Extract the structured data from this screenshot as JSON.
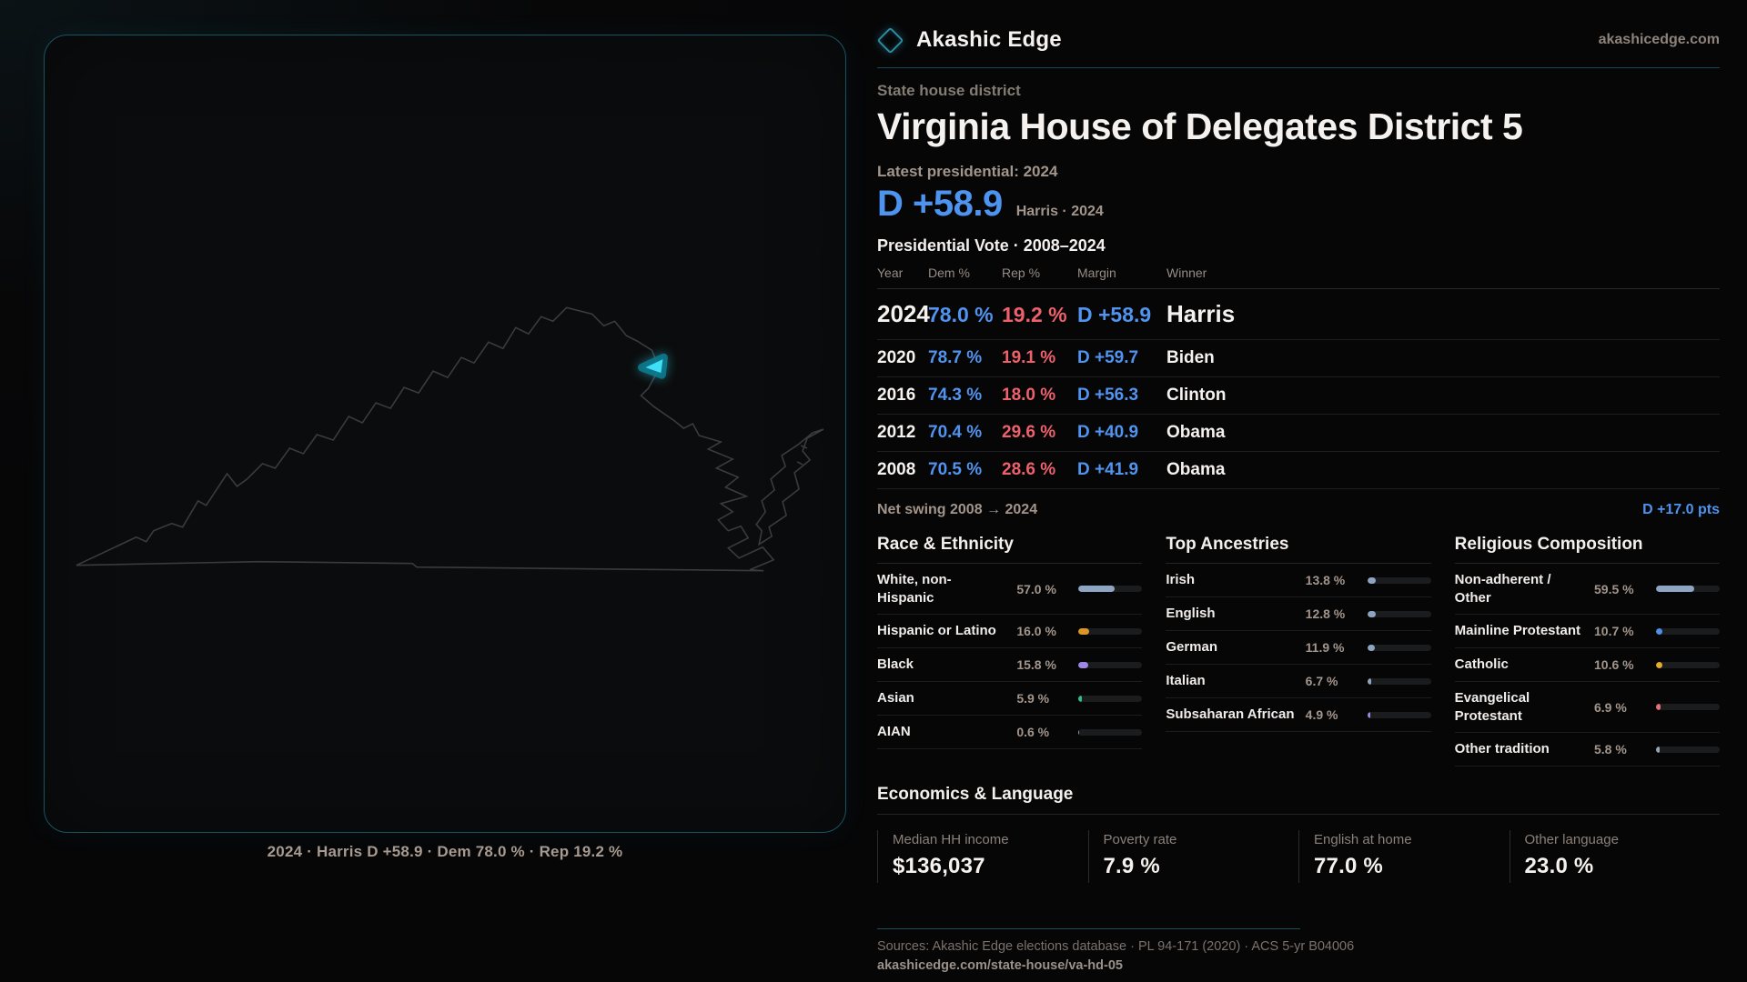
{
  "brand": {
    "name": "Akashic Edge",
    "domain": "akashicedge.com"
  },
  "page": {
    "kicker": "State house district",
    "title": "Virginia House of Delegates District 5",
    "latest_label": "Latest presidential: 2024",
    "headline": {
      "margin": "D +58.9",
      "caption": "Harris · 2024"
    },
    "table_title": "Presidential Vote · 2008–2024",
    "net_swing": {
      "label": "Net swing 2008 → 2024",
      "value": "D +17.0 pts"
    }
  },
  "map": {
    "caption": "2024 · Harris D +58.9 · Dem 78.0 % · Rep 19.2 %",
    "district_color": "#3fe0f6",
    "district_halo_color": "#0d7d92",
    "outline_color": "#3a3b3e"
  },
  "vote_table": {
    "columns": [
      "Year",
      "Dem %",
      "Rep %",
      "Margin",
      "Winner"
    ],
    "rows": [
      {
        "year": "2024",
        "dem": "78.0 %",
        "rep": "19.2 %",
        "margin": "D +58.9",
        "winner": "Harris",
        "highlight": true
      },
      {
        "year": "2020",
        "dem": "78.7 %",
        "rep": "19.1 %",
        "margin": "D +59.7",
        "winner": "Biden",
        "highlight": false
      },
      {
        "year": "2016",
        "dem": "74.3 %",
        "rep": "18.0 %",
        "margin": "D +56.3",
        "winner": "Clinton",
        "highlight": false
      },
      {
        "year": "2012",
        "dem": "70.4 %",
        "rep": "29.6 %",
        "margin": "D +40.9",
        "winner": "Obama",
        "highlight": false
      },
      {
        "year": "2008",
        "dem": "70.5 %",
        "rep": "28.6 %",
        "margin": "D +41.9",
        "winner": "Obama",
        "highlight": false
      }
    ]
  },
  "demographics": [
    {
      "title": "Race & Ethnicity",
      "rows": [
        {
          "label": "White, non-\nHispanic",
          "value": "57.0 %",
          "pct": 57.0,
          "color": "#8da4c2"
        },
        {
          "label": "Hispanic or Latino",
          "value": "16.0 %",
          "pct": 16.0,
          "color": "#dd9526"
        },
        {
          "label": "Black",
          "value": "15.8 %",
          "pct": 15.8,
          "color": "#9f87e6"
        },
        {
          "label": "Asian",
          "value": "5.9 %",
          "pct": 5.9,
          "color": "#2fbd8c"
        },
        {
          "label": "AIAN",
          "value": "0.6 %",
          "pct": 0.6,
          "color": "#8da4c2"
        }
      ]
    },
    {
      "title": "Top Ancestries",
      "rows": [
        {
          "label": "Irish",
          "value": "13.8 %",
          "pct": 13.8,
          "color": "#8da4c2"
        },
        {
          "label": "English",
          "value": "12.8 %",
          "pct": 12.8,
          "color": "#8da4c2"
        },
        {
          "label": "German",
          "value": "11.9 %",
          "pct": 11.9,
          "color": "#8da4c2"
        },
        {
          "label": "Italian",
          "value": "6.7 %",
          "pct": 6.7,
          "color": "#8da4c2"
        },
        {
          "label": "Subsaharan African",
          "value": "4.9 %",
          "pct": 4.9,
          "color": "#9f87e6"
        }
      ]
    },
    {
      "title": "Religious Composition",
      "rows": [
        {
          "label": "Non-adherent /\nOther",
          "value": "59.5 %",
          "pct": 59.5,
          "color": "#8da4c2"
        },
        {
          "label": "Mainline Protestant",
          "value": "10.7 %",
          "pct": 10.7,
          "color": "#4e90e6"
        },
        {
          "label": "Catholic",
          "value": "10.6 %",
          "pct": 10.6,
          "color": "#e3ac2c"
        },
        {
          "label": "Evangelical\nProtestant",
          "value": "6.9 %",
          "pct": 6.9,
          "color": "#e57077"
        },
        {
          "label": "Other tradition",
          "value": "5.8 %",
          "pct": 5.8,
          "color": "#9aa3b2"
        }
      ]
    }
  ],
  "economics": {
    "title": "Economics & Language",
    "stats": [
      {
        "label": "Median HH income",
        "value": "$136,037"
      },
      {
        "label": "Poverty rate",
        "value": "7.9 %"
      },
      {
        "label": "English at home",
        "value": "77.0 %"
      },
      {
        "label": "Other language",
        "value": "23.0 %"
      }
    ]
  },
  "footer": {
    "sources": "Sources: Akashic Edge elections database · PL 94-171 (2020) · ACS 5-yr B04006",
    "permalink": "akashicedge.com/state-house/va-hd-05"
  }
}
